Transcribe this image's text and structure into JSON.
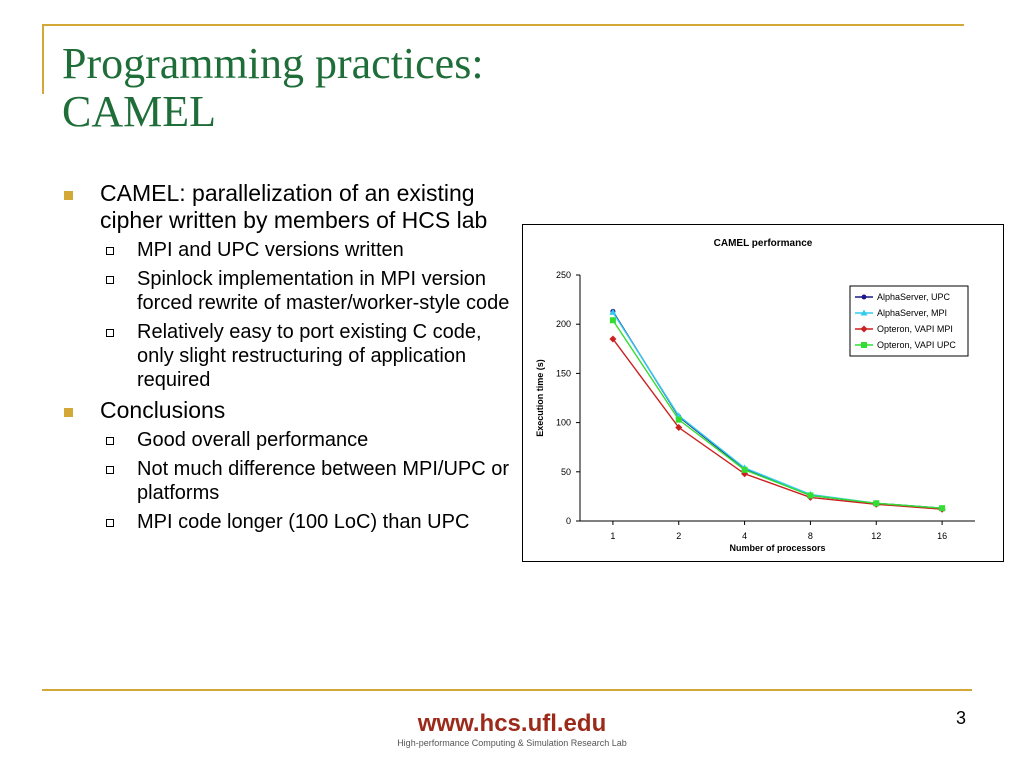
{
  "slide": {
    "title_line1": "Programming practices:",
    "title_line2": "CAMEL",
    "page_number": "3"
  },
  "bullets": [
    {
      "text": "CAMEL: parallelization of an existing cipher written by members of HCS lab",
      "sub": [
        "MPI and UPC versions written",
        "Spinlock implementation in MPI version forced rewrite of master/worker-style code",
        "Relatively easy to port existing C code, only slight restructuring of application required"
      ]
    },
    {
      "text": "Conclusions",
      "sub": [
        "Good overall performance",
        "Not much difference between MPI/UPC or platforms",
        "MPI code longer (100 LoC) than UPC"
      ]
    }
  ],
  "footer": {
    "url": "www.hcs.ufl.edu",
    "subtitle": "High-performance Computing & Simulation Research Lab"
  },
  "colors": {
    "accent_gold": "#d4a838",
    "title_green": "#1f6e3a",
    "footer_red": "#9c2a1a"
  },
  "chart_data": {
    "type": "line",
    "title": "CAMEL performance",
    "xlabel": "Number of processors",
    "ylabel": "Execution time (s)",
    "categories": [
      "1",
      "2",
      "4",
      "8",
      "12",
      "16"
    ],
    "ylim": [
      0,
      250
    ],
    "yticks": [
      0,
      50,
      100,
      150,
      200,
      250
    ],
    "grid": false,
    "legend_position": "top-right",
    "series": [
      {
        "name": "AlphaServer, UPC",
        "color": "#1a1a8c",
        "marker": "circle",
        "values": [
          213,
          106,
          53,
          26,
          18,
          13
        ]
      },
      {
        "name": "AlphaServer, MPI",
        "color": "#33ccee",
        "marker": "triangle",
        "values": [
          212,
          107,
          54,
          27,
          18,
          13
        ]
      },
      {
        "name": "Opteron, VAPI MPI",
        "color": "#cc1f1f",
        "marker": "diamond",
        "values": [
          185,
          95,
          48,
          24,
          17,
          12
        ]
      },
      {
        "name": "Opteron, VAPI UPC",
        "color": "#33dd33",
        "marker": "square",
        "values": [
          204,
          103,
          52,
          26,
          18,
          13
        ]
      }
    ]
  }
}
